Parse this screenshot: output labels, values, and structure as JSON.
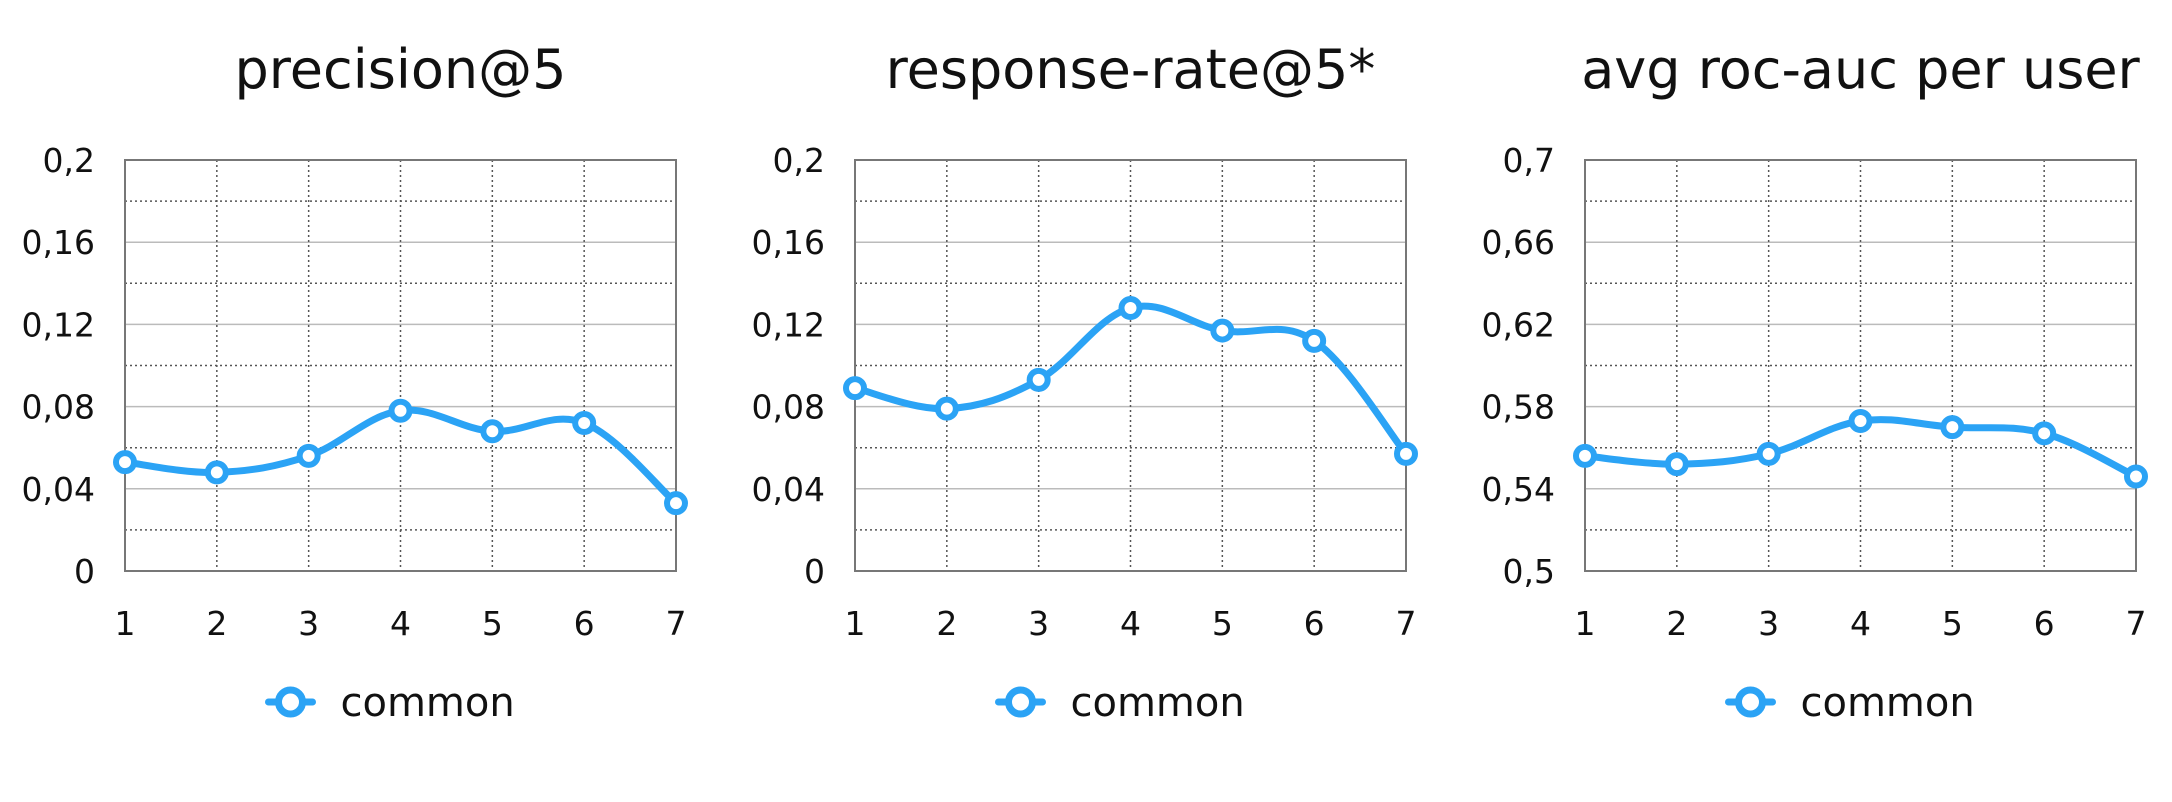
{
  "colors": {
    "series": "#2ba3f5",
    "frame": "#777777",
    "grid_major": "#bbbbbb",
    "grid_minor": "#555555"
  },
  "chart_data": [
    {
      "type": "line",
      "title": "precision@5",
      "x": [
        1,
        2,
        3,
        4,
        5,
        6,
        7
      ],
      "x_tick_labels": [
        "1",
        "2",
        "3",
        "4",
        "5",
        "6",
        "7"
      ],
      "ylim": [
        0,
        0.2
      ],
      "y_ticks": [
        0,
        0.04,
        0.08,
        0.12,
        0.16,
        0.2
      ],
      "y_tick_labels": [
        "0",
        "0,04",
        "0,08",
        "0,12",
        "0,16",
        "0,2"
      ],
      "grid": true,
      "legend": "bottom-center",
      "series": [
        {
          "name": "common",
          "values": [
            0.053,
            0.048,
            0.056,
            0.078,
            0.068,
            0.072,
            0.033
          ]
        }
      ]
    },
    {
      "type": "line",
      "title": "response-rate@5*",
      "x": [
        1,
        2,
        3,
        4,
        5,
        6,
        7
      ],
      "x_tick_labels": [
        "1",
        "2",
        "3",
        "4",
        "5",
        "6",
        "7"
      ],
      "ylim": [
        0,
        0.2
      ],
      "y_ticks": [
        0,
        0.04,
        0.08,
        0.12,
        0.16,
        0.2
      ],
      "y_tick_labels": [
        "0",
        "0,04",
        "0,08",
        "0,12",
        "0,16",
        "0,2"
      ],
      "grid": true,
      "legend": "bottom-center",
      "series": [
        {
          "name": "common",
          "values": [
            0.089,
            0.079,
            0.093,
            0.128,
            0.117,
            0.112,
            0.057
          ]
        }
      ]
    },
    {
      "type": "line",
      "title": "avg roc-auc per user",
      "x": [
        1,
        2,
        3,
        4,
        5,
        6,
        7
      ],
      "x_tick_labels": [
        "1",
        "2",
        "3",
        "4",
        "5",
        "6",
        "7"
      ],
      "ylim": [
        0.5,
        0.7
      ],
      "y_ticks": [
        0.5,
        0.54,
        0.58,
        0.62,
        0.66,
        0.7
      ],
      "y_tick_labels": [
        "0,5",
        "0,54",
        "0,58",
        "0,62",
        "0,66",
        "0,7"
      ],
      "grid": true,
      "legend": "bottom-center",
      "series": [
        {
          "name": "common",
          "values": [
            0.556,
            0.552,
            0.557,
            0.573,
            0.57,
            0.567,
            0.546
          ]
        }
      ]
    }
  ]
}
